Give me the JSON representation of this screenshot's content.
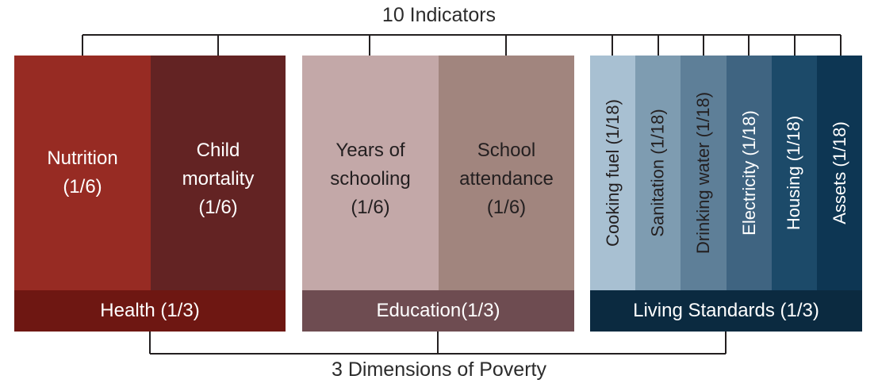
{
  "top_label": "10 Indicators",
  "bottom_label": "3 Dimensions of Poverty",
  "health": {
    "footer": "Health (1/3)",
    "indicators": [
      {
        "line1": "Nutrition",
        "line2": "(1/6)",
        "line3": ""
      },
      {
        "line1": "Child",
        "line2": "mortality",
        "line3": "(1/6)"
      }
    ]
  },
  "education": {
    "footer": "Education(1/3)",
    "indicators": [
      {
        "line1": "Years of",
        "line2": "schooling",
        "line3": "(1/6)"
      },
      {
        "line1": "School",
        "line2": "attendance",
        "line3": "(1/6)"
      }
    ]
  },
  "living": {
    "footer": "Living Standards (1/3)",
    "indicators": [
      "Cooking fuel (1/18)",
      "Sanitation (1/18)",
      "Drinking water (1/18)",
      "Electricity (1/18)",
      "Housing (1/18)",
      "Assets (1/18)"
    ]
  },
  "colors": {
    "nutrition": "#972b23",
    "child_mortality": "#632323",
    "health_footer": "#6e1712",
    "years_schooling": "#c3a8a8",
    "school_attendance": "#a1857e",
    "education_footer": "#6e4c51",
    "cooking_fuel": "#a8c0d2",
    "sanitation": "#7e9cb1",
    "drinking_water": "#5e7f98",
    "electricity": "#3f6481",
    "housing": "#1c4a69",
    "assets": "#0d3653",
    "living_footer": "#0b2a40"
  }
}
